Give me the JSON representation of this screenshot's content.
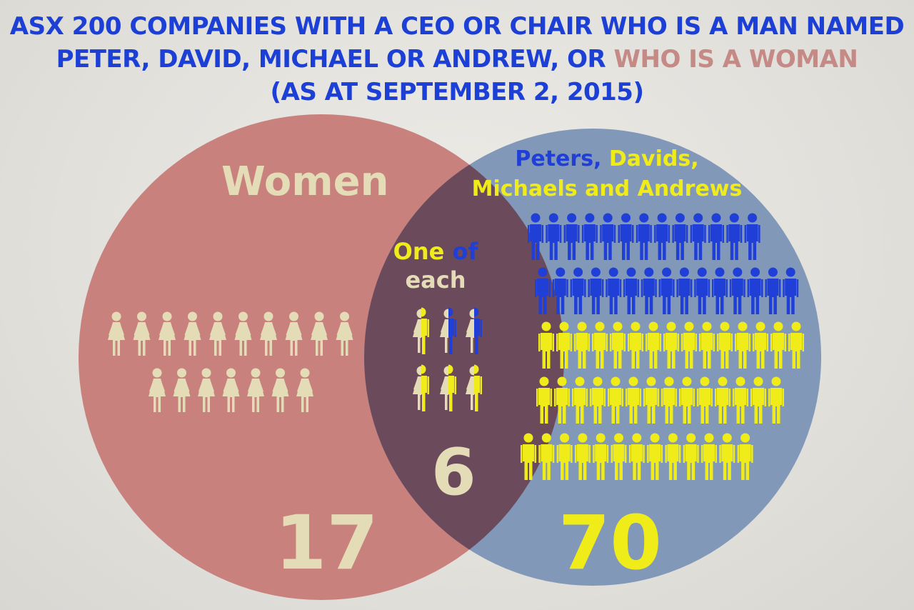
{
  "title": {
    "line1": "ASX 200 COMPANIES WITH A CEO OR CHAIR WHO IS A MAN NAMED",
    "line2_prefix": "PETER, DAVID, MICHAEL OR ANDREW, OR ",
    "line2_highlight": "WHO IS A WOMAN",
    "line3": "(AS AT SEPTEMBER 2, 2015)"
  },
  "women": {
    "label": "Women",
    "count": "17"
  },
  "men": {
    "label_part1": "Peters,",
    "label_part2": "Davids,",
    "label_part3": "Michaels and Andrews",
    "count": "70"
  },
  "overlap": {
    "label_part1": "One",
    "label_part2": "of",
    "label_part3": "each",
    "count": "6"
  },
  "colors": {
    "title_blue": "#1c3fd6",
    "women_circle": "#c77b78",
    "men_circle": "#7b93b6",
    "overlap": "#6b4a5c",
    "cream": "#e4dcb6",
    "blue_figure": "#1f3fd6",
    "yellow_figure": "#f0ec1a"
  },
  "icons": {
    "woman": "woman-figure-icon",
    "man_blue": "man-figure-blue-icon",
    "man_yellow": "man-figure-yellow-icon",
    "half": "half-woman-half-man-icon"
  },
  "figures": {
    "women_count": 17,
    "men_blue_count": 28,
    "men_yellow_count": 42,
    "both_count": 6
  }
}
